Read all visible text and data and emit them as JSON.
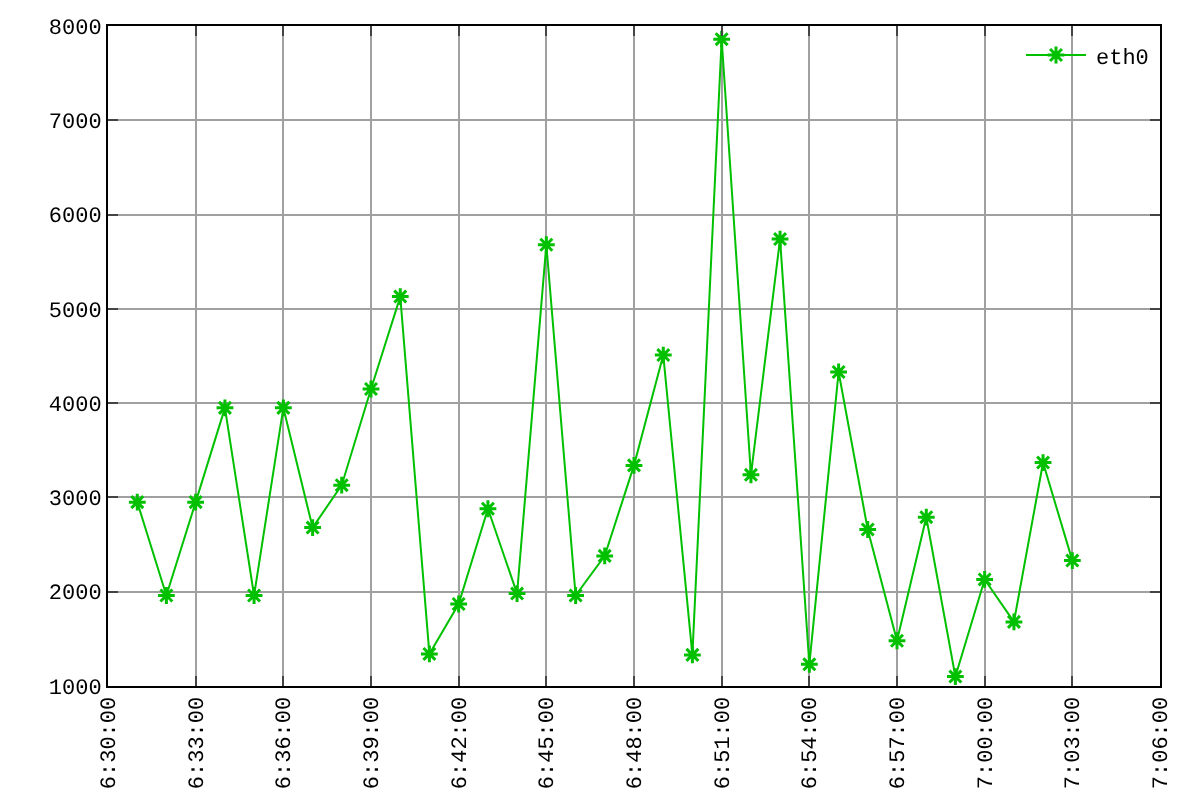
{
  "chart_data": {
    "type": "line",
    "legend": "top right",
    "grid": true,
    "marker": "cross",
    "line_style": "solid",
    "x": [
      6.5167,
      6.5333,
      6.55,
      6.5667,
      6.5833,
      6.6,
      6.6167,
      6.6333,
      6.65,
      6.6667,
      6.6833,
      6.7,
      6.7167,
      6.7333,
      6.75,
      6.7667,
      6.7833,
      6.8,
      6.8167,
      6.8333,
      6.85,
      6.8667,
      6.8833,
      6.9,
      6.9167,
      6.9333,
      6.95,
      6.9667,
      6.9833,
      7.0,
      7.0167,
      7.0333,
      7.05
    ],
    "series": [
      {
        "name": "eth0",
        "color": "#00c000",
        "values": [
          2950,
          1960,
          2950,
          3950,
          1960,
          3950,
          2680,
          3130,
          4150,
          5130,
          1340,
          1870,
          2880,
          1980,
          5680,
          1960,
          2380,
          3340,
          4510,
          1330,
          7860,
          3240,
          5740,
          1230,
          4330,
          2660,
          1480,
          2790,
          1100,
          2130,
          1680,
          3370,
          2330
        ]
      }
    ],
    "xlim": [
      6.5,
      7.1
    ],
    "xticks": [
      {
        "value": 6.5,
        "label": "6:30:00"
      },
      {
        "value": 6.55,
        "label": "6:33:00"
      },
      {
        "value": 6.6,
        "label": "6:36:00"
      },
      {
        "value": 6.65,
        "label": "6:39:00"
      },
      {
        "value": 6.7,
        "label": "6:42:00"
      },
      {
        "value": 6.75,
        "label": "6:45:00"
      },
      {
        "value": 6.8,
        "label": "6:48:00"
      },
      {
        "value": 6.85,
        "label": "6:51:00"
      },
      {
        "value": 6.9,
        "label": "6:54:00"
      },
      {
        "value": 6.95,
        "label": "6:57:00"
      },
      {
        "value": 7.0,
        "label": "7:00:00"
      },
      {
        "value": 7.05,
        "label": "7:03:00"
      },
      {
        "value": 7.1,
        "label": "7:06:00"
      }
    ],
    "ylim": [
      1000,
      8000
    ],
    "yticks": [
      1000,
      2000,
      3000,
      4000,
      5000,
      6000,
      7000,
      8000
    ]
  }
}
